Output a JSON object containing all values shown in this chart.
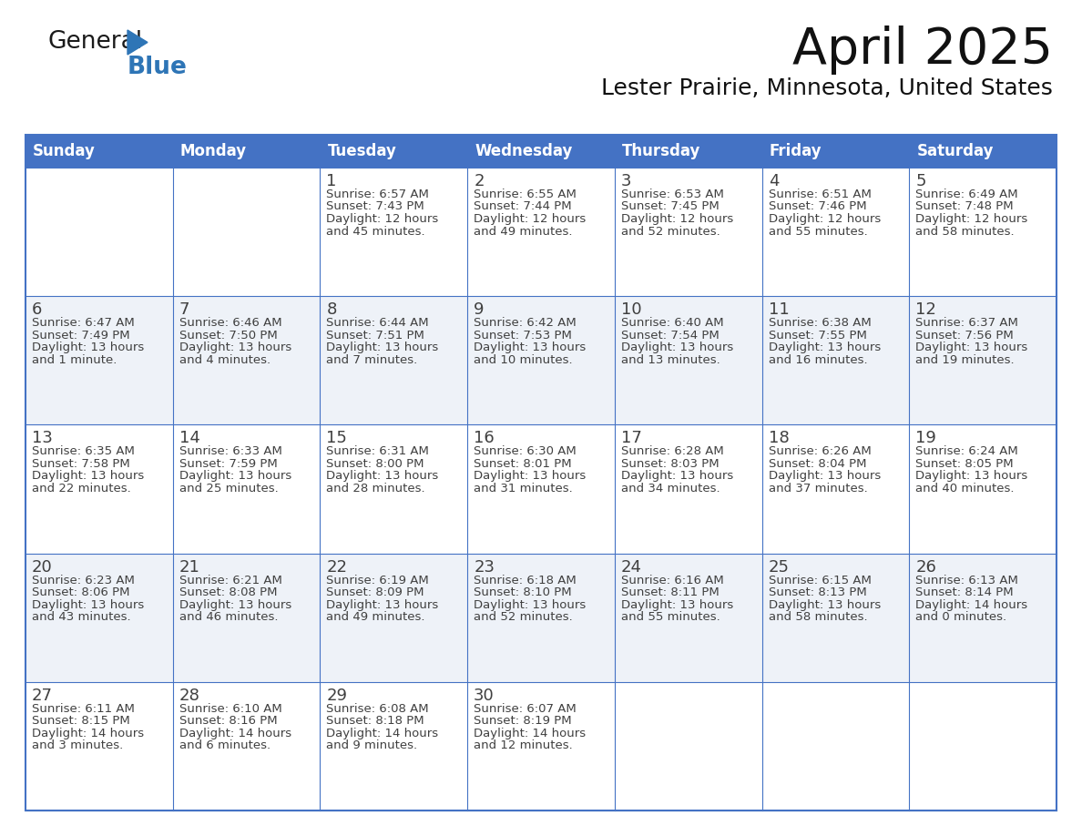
{
  "title": "April 2025",
  "subtitle": "Lester Prairie, Minnesota, United States",
  "header_bg": "#4472C4",
  "header_text_color": "#FFFFFF",
  "row_bg_odd": "#FFFFFF",
  "row_bg_even": "#EEF2F8",
  "border_color": "#4472C4",
  "text_color": "#404040",
  "days_of_week": [
    "Sunday",
    "Monday",
    "Tuesday",
    "Wednesday",
    "Thursday",
    "Friday",
    "Saturday"
  ],
  "calendar": [
    [
      {
        "day": "",
        "info": ""
      },
      {
        "day": "",
        "info": ""
      },
      {
        "day": "1",
        "info": "Sunrise: 6:57 AM\nSunset: 7:43 PM\nDaylight: 12 hours\nand 45 minutes."
      },
      {
        "day": "2",
        "info": "Sunrise: 6:55 AM\nSunset: 7:44 PM\nDaylight: 12 hours\nand 49 minutes."
      },
      {
        "day": "3",
        "info": "Sunrise: 6:53 AM\nSunset: 7:45 PM\nDaylight: 12 hours\nand 52 minutes."
      },
      {
        "day": "4",
        "info": "Sunrise: 6:51 AM\nSunset: 7:46 PM\nDaylight: 12 hours\nand 55 minutes."
      },
      {
        "day": "5",
        "info": "Sunrise: 6:49 AM\nSunset: 7:48 PM\nDaylight: 12 hours\nand 58 minutes."
      }
    ],
    [
      {
        "day": "6",
        "info": "Sunrise: 6:47 AM\nSunset: 7:49 PM\nDaylight: 13 hours\nand 1 minute."
      },
      {
        "day": "7",
        "info": "Sunrise: 6:46 AM\nSunset: 7:50 PM\nDaylight: 13 hours\nand 4 minutes."
      },
      {
        "day": "8",
        "info": "Sunrise: 6:44 AM\nSunset: 7:51 PM\nDaylight: 13 hours\nand 7 minutes."
      },
      {
        "day": "9",
        "info": "Sunrise: 6:42 AM\nSunset: 7:53 PM\nDaylight: 13 hours\nand 10 minutes."
      },
      {
        "day": "10",
        "info": "Sunrise: 6:40 AM\nSunset: 7:54 PM\nDaylight: 13 hours\nand 13 minutes."
      },
      {
        "day": "11",
        "info": "Sunrise: 6:38 AM\nSunset: 7:55 PM\nDaylight: 13 hours\nand 16 minutes."
      },
      {
        "day": "12",
        "info": "Sunrise: 6:37 AM\nSunset: 7:56 PM\nDaylight: 13 hours\nand 19 minutes."
      }
    ],
    [
      {
        "day": "13",
        "info": "Sunrise: 6:35 AM\nSunset: 7:58 PM\nDaylight: 13 hours\nand 22 minutes."
      },
      {
        "day": "14",
        "info": "Sunrise: 6:33 AM\nSunset: 7:59 PM\nDaylight: 13 hours\nand 25 minutes."
      },
      {
        "day": "15",
        "info": "Sunrise: 6:31 AM\nSunset: 8:00 PM\nDaylight: 13 hours\nand 28 minutes."
      },
      {
        "day": "16",
        "info": "Sunrise: 6:30 AM\nSunset: 8:01 PM\nDaylight: 13 hours\nand 31 minutes."
      },
      {
        "day": "17",
        "info": "Sunrise: 6:28 AM\nSunset: 8:03 PM\nDaylight: 13 hours\nand 34 minutes."
      },
      {
        "day": "18",
        "info": "Sunrise: 6:26 AM\nSunset: 8:04 PM\nDaylight: 13 hours\nand 37 minutes."
      },
      {
        "day": "19",
        "info": "Sunrise: 6:24 AM\nSunset: 8:05 PM\nDaylight: 13 hours\nand 40 minutes."
      }
    ],
    [
      {
        "day": "20",
        "info": "Sunrise: 6:23 AM\nSunset: 8:06 PM\nDaylight: 13 hours\nand 43 minutes."
      },
      {
        "day": "21",
        "info": "Sunrise: 6:21 AM\nSunset: 8:08 PM\nDaylight: 13 hours\nand 46 minutes."
      },
      {
        "day": "22",
        "info": "Sunrise: 6:19 AM\nSunset: 8:09 PM\nDaylight: 13 hours\nand 49 minutes."
      },
      {
        "day": "23",
        "info": "Sunrise: 6:18 AM\nSunset: 8:10 PM\nDaylight: 13 hours\nand 52 minutes."
      },
      {
        "day": "24",
        "info": "Sunrise: 6:16 AM\nSunset: 8:11 PM\nDaylight: 13 hours\nand 55 minutes."
      },
      {
        "day": "25",
        "info": "Sunrise: 6:15 AM\nSunset: 8:13 PM\nDaylight: 13 hours\nand 58 minutes."
      },
      {
        "day": "26",
        "info": "Sunrise: 6:13 AM\nSunset: 8:14 PM\nDaylight: 14 hours\nand 0 minutes."
      }
    ],
    [
      {
        "day": "27",
        "info": "Sunrise: 6:11 AM\nSunset: 8:15 PM\nDaylight: 14 hours\nand 3 minutes."
      },
      {
        "day": "28",
        "info": "Sunrise: 6:10 AM\nSunset: 8:16 PM\nDaylight: 14 hours\nand 6 minutes."
      },
      {
        "day": "29",
        "info": "Sunrise: 6:08 AM\nSunset: 8:18 PM\nDaylight: 14 hours\nand 9 minutes."
      },
      {
        "day": "30",
        "info": "Sunrise: 6:07 AM\nSunset: 8:19 PM\nDaylight: 14 hours\nand 12 minutes."
      },
      {
        "day": "",
        "info": ""
      },
      {
        "day": "",
        "info": ""
      },
      {
        "day": "",
        "info": ""
      }
    ]
  ],
  "logo_blue": "#2E75B6",
  "logo_dark": "#1A1A1A",
  "fig_width": 11.88,
  "fig_height": 9.18,
  "dpi": 100
}
